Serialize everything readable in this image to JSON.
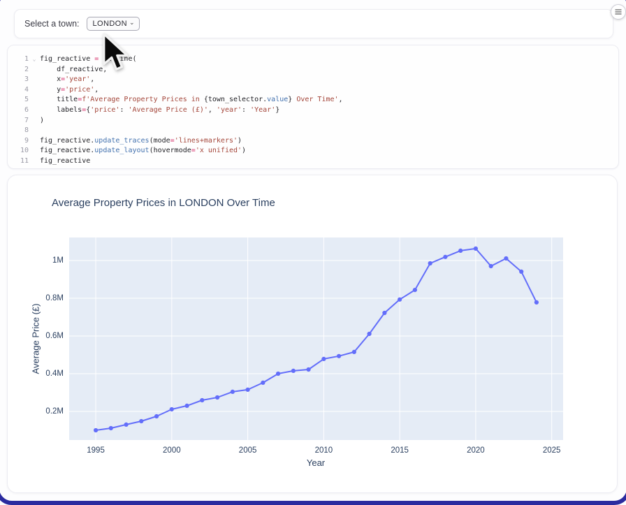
{
  "widget": {
    "label": "Select a town:",
    "selected": "LONDON"
  },
  "menu": {
    "icon": "hamburger-menu"
  },
  "editor": {
    "lines": [
      {
        "n": "1",
        "fold": true,
        "tokens": [
          [
            "fig_reactive ",
            "d"
          ],
          [
            "=",
            "o"
          ],
          [
            " px.line(",
            "d"
          ]
        ]
      },
      {
        "n": "2",
        "fold": false,
        "tokens": [
          [
            "    df_reactive,",
            "d"
          ]
        ]
      },
      {
        "n": "3",
        "fold": false,
        "tokens": [
          [
            "    x",
            "d"
          ],
          [
            "=",
            "o"
          ],
          [
            "'year'",
            "s"
          ],
          [
            ",",
            "d"
          ]
        ]
      },
      {
        "n": "4",
        "fold": false,
        "tokens": [
          [
            "    y",
            "d"
          ],
          [
            "=",
            "o"
          ],
          [
            "'price'",
            "s"
          ],
          [
            ",",
            "d"
          ]
        ]
      },
      {
        "n": "5",
        "fold": false,
        "tokens": [
          [
            "    title",
            "d"
          ],
          [
            "=",
            "o"
          ],
          [
            "f'Average Property Prices in ",
            "s"
          ],
          [
            "{",
            "d"
          ],
          [
            "town_selector.",
            "d"
          ],
          [
            "value",
            "a"
          ],
          [
            "}",
            "d"
          ],
          [
            " Over Time'",
            "s"
          ],
          [
            ",",
            "d"
          ]
        ]
      },
      {
        "n": "6",
        "fold": false,
        "tokens": [
          [
            "    labels",
            "d"
          ],
          [
            "=",
            "o"
          ],
          [
            "{",
            "d"
          ],
          [
            "'price'",
            "s"
          ],
          [
            ": ",
            "d"
          ],
          [
            "'Average Price (£)'",
            "s"
          ],
          [
            ", ",
            "d"
          ],
          [
            "'year'",
            "s"
          ],
          [
            ": ",
            "d"
          ],
          [
            "'Year'",
            "s"
          ],
          [
            "}",
            "d"
          ]
        ]
      },
      {
        "n": "7",
        "fold": false,
        "tokens": [
          [
            ")",
            "d"
          ]
        ]
      },
      {
        "n": "8",
        "fold": false,
        "tokens": []
      },
      {
        "n": "9",
        "fold": false,
        "tokens": [
          [
            "fig_reactive.",
            "d"
          ],
          [
            "update_traces",
            "f"
          ],
          [
            "(mode",
            "d"
          ],
          [
            "=",
            "o"
          ],
          [
            "'lines+markers'",
            "s"
          ],
          [
            ")",
            "d"
          ]
        ]
      },
      {
        "n": "10",
        "fold": false,
        "tokens": [
          [
            "fig_reactive.",
            "d"
          ],
          [
            "update_layout",
            "f"
          ],
          [
            "(hovermode",
            "d"
          ],
          [
            "=",
            "o"
          ],
          [
            "'x unified'",
            "s"
          ],
          [
            ")",
            "d"
          ]
        ]
      },
      {
        "n": "11",
        "fold": false,
        "tokens": [
          [
            "fig_reactive",
            "d"
          ]
        ]
      }
    ]
  },
  "chart_data": {
    "type": "line",
    "mode": "lines+markers",
    "title": "Average Property Prices in LONDON Over Time",
    "xlabel": "Year",
    "ylabel": "Average Price (£)",
    "x": [
      1995,
      1996,
      1997,
      1998,
      1999,
      2000,
      2001,
      2002,
      2003,
      2004,
      2005,
      2006,
      2007,
      2008,
      2009,
      2010,
      2011,
      2012,
      2013,
      2014,
      2015,
      2016,
      2017,
      2018,
      2019,
      2020,
      2021,
      2022,
      2023,
      2024
    ],
    "y": [
      100000,
      111000,
      130000,
      148000,
      174000,
      211000,
      230000,
      259000,
      274000,
      304000,
      315000,
      352000,
      400000,
      415000,
      422000,
      478000,
      493000,
      515000,
      611000,
      722000,
      793000,
      844000,
      985000,
      1019000,
      1052000,
      1063000,
      970000,
      1011000,
      941000,
      778000
    ],
    "x_ticks": [
      1995,
      2000,
      2005,
      2010,
      2015,
      2020,
      2025
    ],
    "y_ticks": [
      {
        "v": 200000,
        "label": "0.2M"
      },
      {
        "v": 400000,
        "label": "0.4M"
      },
      {
        "v": 600000,
        "label": "0.6M"
      },
      {
        "v": 800000,
        "label": "0.8M"
      },
      {
        "v": 1000000,
        "label": "1M"
      }
    ],
    "x_range": [
      1993.25,
      2025.75
    ],
    "y_range": [
      48000,
      1122000
    ],
    "grid": true,
    "legend": false,
    "line_color": "#636efa",
    "plot_bg": "#e5ecf6",
    "grid_color": "#ffffff",
    "font_color": "#2a3f5f"
  },
  "colors": {
    "frame": "#2b2b9f",
    "string": "#a4463a",
    "operator": "#d6336c",
    "function": "#4271ae"
  }
}
